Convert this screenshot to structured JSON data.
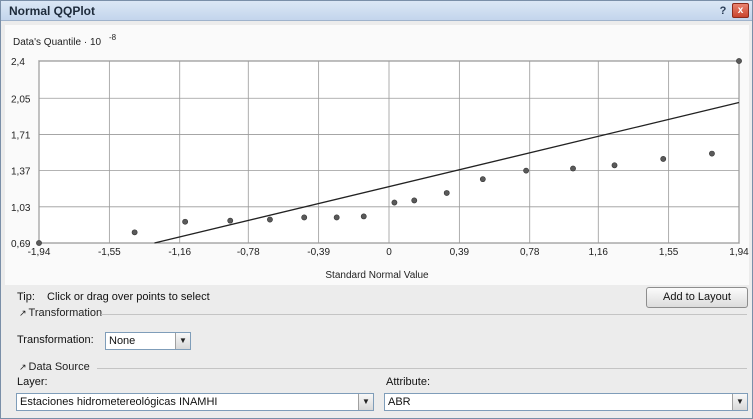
{
  "window": {
    "title": "Normal QQPlot",
    "help_glyph": "?",
    "close_glyph": "x"
  },
  "chart_data": {
    "type": "scatter",
    "ylabel": "Data's Quantile · 10",
    "ylabel_exponent": "-8",
    "xlabel": "Standard Normal Value",
    "xlim": [
      -1.94,
      1.94
    ],
    "ylim": [
      0.69,
      2.4
    ],
    "x_ticks": [
      "-1,94",
      "-1,55",
      "-1,16",
      "-0,78",
      "-0,39",
      "0",
      "0,39",
      "0,78",
      "1,16",
      "1,55",
      "1,94"
    ],
    "y_ticks": [
      "0,69",
      "1,03",
      "1,37",
      "1,71",
      "2,05",
      "2,4"
    ],
    "y_tick_values": [
      0.69,
      1.03,
      1.37,
      1.71,
      2.05,
      2.4
    ],
    "x_tick_values": [
      -1.94,
      -1.55,
      -1.16,
      -0.78,
      -0.39,
      0,
      0.39,
      0.78,
      1.16,
      1.55,
      1.94
    ],
    "grid": true,
    "points": [
      {
        "x": -1.94,
        "y": 0.69
      },
      {
        "x": -1.41,
        "y": 0.79
      },
      {
        "x": -1.13,
        "y": 0.89
      },
      {
        "x": -0.88,
        "y": 0.9
      },
      {
        "x": -0.66,
        "y": 0.91
      },
      {
        "x": -0.47,
        "y": 0.93
      },
      {
        "x": -0.29,
        "y": 0.93
      },
      {
        "x": -0.14,
        "y": 0.94
      },
      {
        "x": 0.03,
        "y": 1.07
      },
      {
        "x": 0.14,
        "y": 1.09
      },
      {
        "x": 0.32,
        "y": 1.16
      },
      {
        "x": 0.52,
        "y": 1.29
      },
      {
        "x": 0.76,
        "y": 1.37
      },
      {
        "x": 1.02,
        "y": 1.39
      },
      {
        "x": 1.25,
        "y": 1.42
      },
      {
        "x": 1.52,
        "y": 1.48
      },
      {
        "x": 1.79,
        "y": 1.53
      },
      {
        "x": 1.94,
        "y": 2.4
      }
    ],
    "reference_line": {
      "x": [
        -1.3,
        1.94
      ],
      "y": [
        0.69,
        2.01
      ]
    }
  },
  "tip": {
    "label": "Tip:",
    "text": "Click or drag over points to select"
  },
  "add_to_layout_label": "Add to Layout",
  "transformation_group": {
    "header": "Transformation",
    "field_label": "Transformation:",
    "value": "None"
  },
  "data_source_group": {
    "header": "Data Source",
    "layer_label": "Layer:",
    "layer_value": "Estaciones hidrometereológicas INAMHI",
    "attribute_label": "Attribute:",
    "attribute_value": "ABR"
  },
  "icons": {
    "dropdown": "chevron-down-icon",
    "collapse": "collapse-arrow-icon"
  }
}
